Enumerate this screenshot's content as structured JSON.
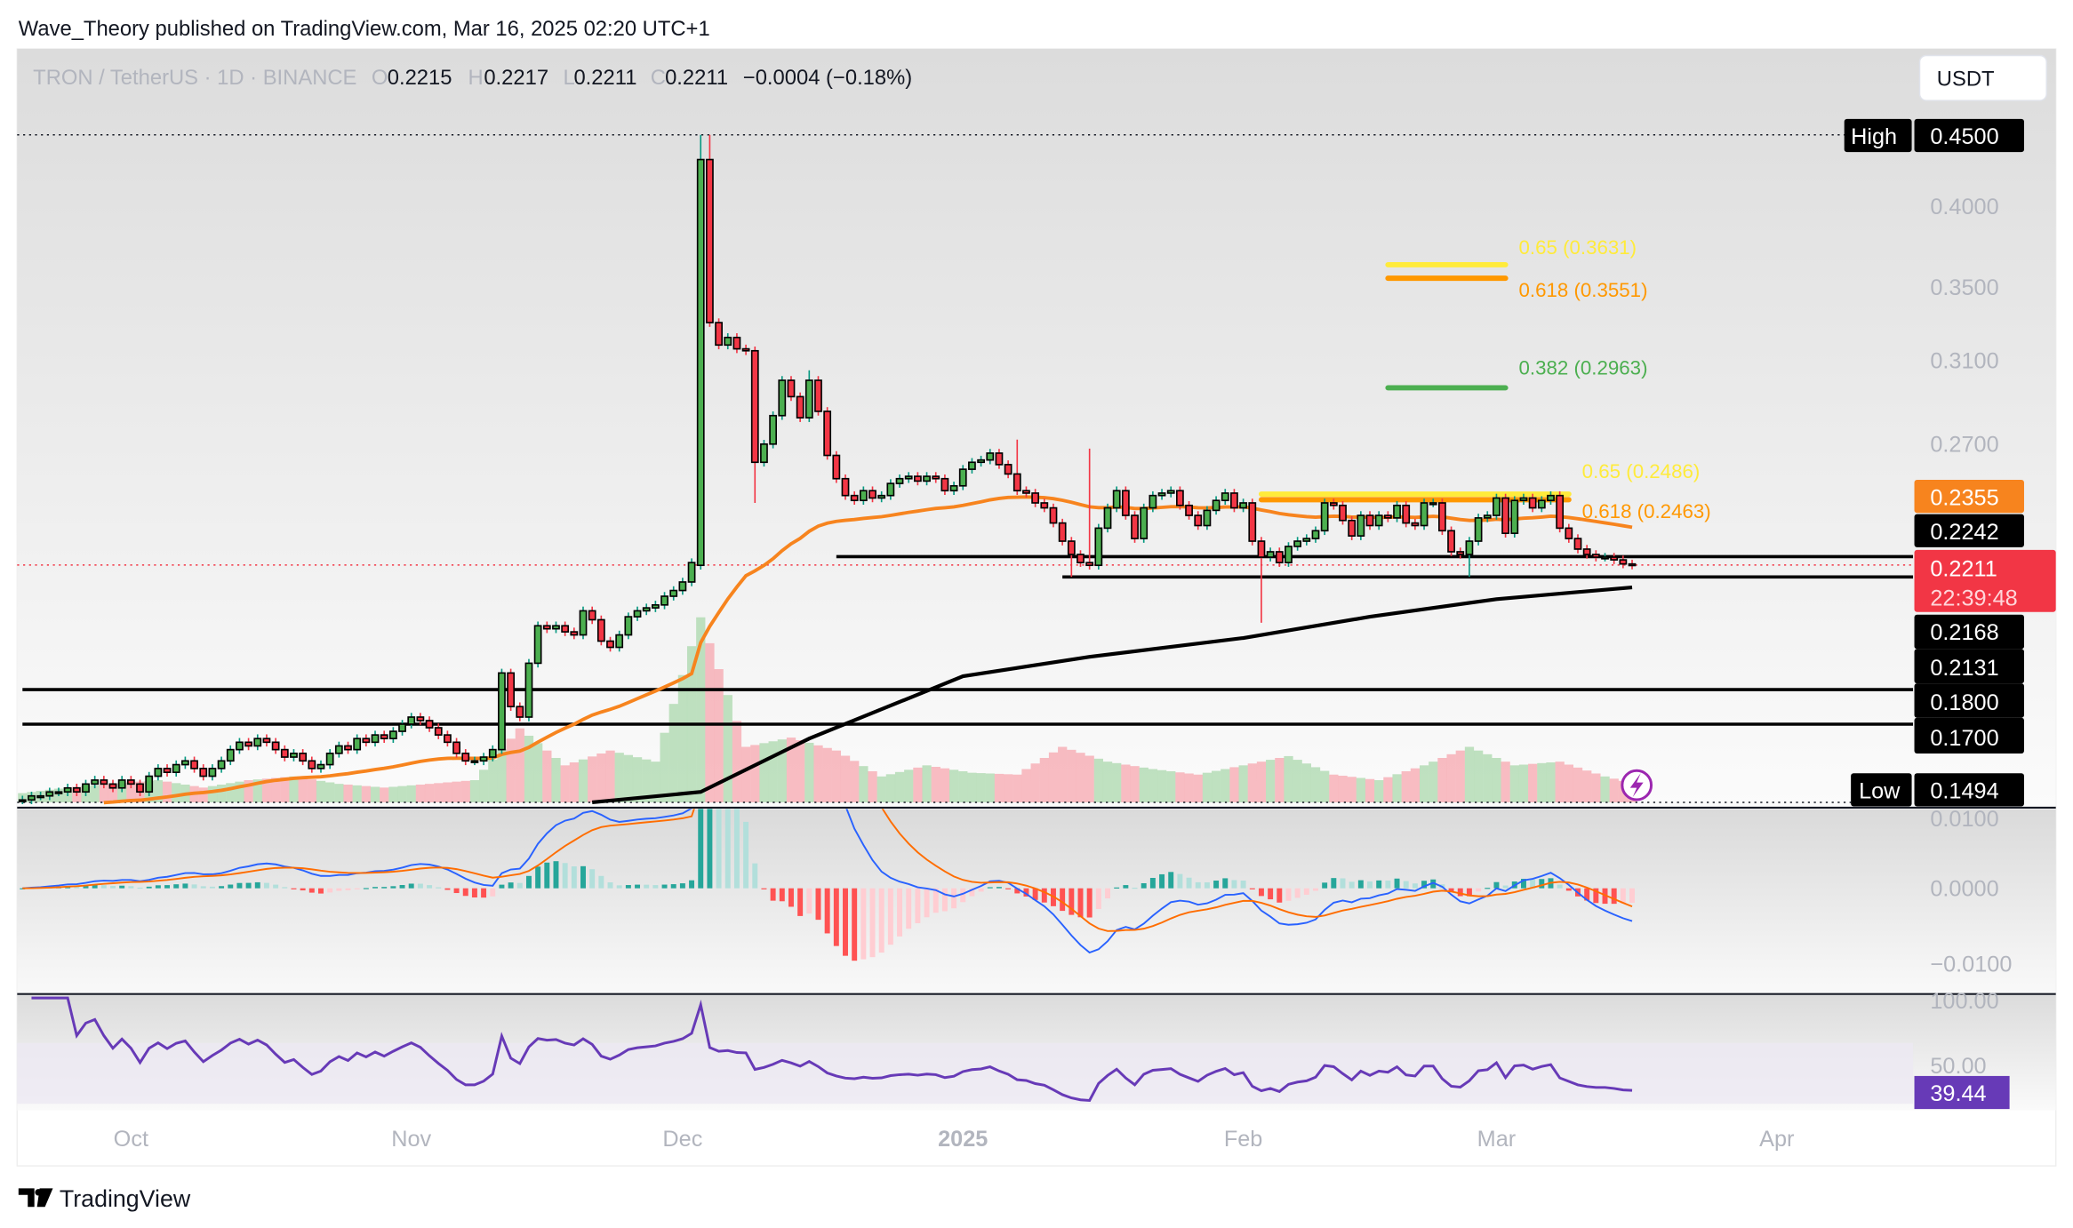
{
  "header": {
    "published": "Wave_Theory published on TradingView.com, Mar 16, 2025 02:20 UTC+1"
  },
  "legend": {
    "symbol": "TRON / TetherUS · 1D · BINANCE",
    "o_label": "O",
    "open": "0.2215",
    "h_label": "H",
    "high": "0.2217",
    "l_label": "L",
    "low": "0.2211",
    "c_label": "C",
    "close": "0.2211",
    "change": "−0.0004 (−0.18%)"
  },
  "currency_button": "USDT",
  "footer": {
    "logo_text": "TradingView"
  },
  "colors": {
    "up": "#4caf50",
    "down": "#f23645",
    "ema_fast": "#f7841e",
    "ema_slow": "#000000",
    "macd": "#2962ff",
    "signal": "#ff6d00",
    "rsi": "#673ab7",
    "last_price": "#f23645"
  },
  "chart_data": {
    "type": "candlestick",
    "scale": "log",
    "first_date": "2024-09-19",
    "closes": [
      0.15,
      0.151,
      0.151,
      0.152,
      0.152,
      0.153,
      0.152,
      0.154,
      0.155,
      0.154,
      0.153,
      0.155,
      0.154,
      0.152,
      0.156,
      0.158,
      0.157,
      0.159,
      0.16,
      0.158,
      0.156,
      0.158,
      0.16,
      0.163,
      0.165,
      0.164,
      0.166,
      0.165,
      0.163,
      0.161,
      0.162,
      0.16,
      0.158,
      0.159,
      0.162,
      0.164,
      0.163,
      0.166,
      0.165,
      0.167,
      0.166,
      0.168,
      0.17,
      0.172,
      0.171,
      0.169,
      0.167,
      0.165,
      0.162,
      0.16,
      0.16,
      0.161,
      0.163,
      0.185,
      0.175,
      0.172,
      0.188,
      0.2,
      0.199,
      0.2,
      0.198,
      0.197,
      0.205,
      0.202,
      0.195,
      0.193,
      0.197,
      0.203,
      0.205,
      0.206,
      0.207,
      0.21,
      0.212,
      0.215,
      0.222,
      0.432,
      0.33,
      0.318,
      0.322,
      0.316,
      0.315,
      0.262,
      0.27,
      0.283,
      0.3,
      0.292,
      0.282,
      0.3,
      0.285,
      0.265,
      0.255,
      0.248,
      0.246,
      0.25,
      0.247,
      0.248,
      0.253,
      0.255,
      0.256,
      0.254,
      0.256,
      0.255,
      0.25,
      0.252,
      0.259,
      0.262,
      0.263,
      0.266,
      0.261,
      0.257,
      0.25,
      0.249,
      0.245,
      0.243,
      0.237,
      0.23,
      0.225,
      0.222,
      0.221,
      0.235,
      0.243,
      0.25,
      0.24,
      0.231,
      0.243,
      0.248,
      0.249,
      0.25,
      0.244,
      0.24,
      0.236,
      0.242,
      0.246,
      0.249,
      0.243,
      0.245,
      0.23,
      0.224,
      0.226,
      0.222,
      0.228,
      0.23,
      0.231,
      0.234,
      0.245,
      0.244,
      0.238,
      0.232,
      0.24,
      0.236,
      0.24,
      0.239,
      0.244,
      0.237,
      0.236,
      0.245,
      0.245,
      0.234,
      0.226,
      0.225,
      0.23,
      0.239,
      0.24,
      0.247,
      0.233,
      0.246,
      0.247,
      0.243,
      0.246,
      0.248,
      0.235,
      0.231,
      0.227,
      0.225,
      0.224,
      0.224,
      0.223,
      0.2215,
      0.2211
    ],
    "open_overrides": {
      "75": 0.221,
      "178": 0.2215
    },
    "high_overrides": {
      "75": 0.45,
      "76": 0.45,
      "87": 0.305,
      "110": 0.272,
      "118": 0.268
    },
    "low_overrides": {
      "81": 0.245,
      "116": 0.2168,
      "137": 0.201,
      "160": 0.2168
    },
    "volume_keypoints": [
      5,
      8,
      10,
      12,
      8,
      12,
      14,
      10,
      8,
      10,
      12,
      40,
      20,
      28,
      22,
      100,
      30,
      35,
      28,
      14,
      20,
      16,
      15,
      30,
      22,
      18,
      15,
      20,
      25,
      15,
      12,
      20,
      30,
      20,
      22,
      14,
      8
    ],
    "ema_slow_keypoints": [
      [
        "2024-11-21",
        0.1494
      ],
      [
        "2024-12-03",
        0.152
      ],
      [
        "2024-12-15",
        0.166
      ],
      [
        "2025-01-01",
        0.184
      ],
      [
        "2025-01-15",
        0.19
      ],
      [
        "2025-02-01",
        0.196
      ],
      [
        "2025-02-15",
        0.203
      ],
      [
        "2025-03-01",
        0.209
      ],
      [
        "2025-03-16",
        0.2131
      ]
    ],
    "price_axis": {
      "ticks": [
        "0.4000",
        "0.3500",
        "0.3100",
        "0.2700"
      ]
    },
    "price_labels": {
      "high_label": "High",
      "high": "0.4500",
      "low_label": "Low",
      "low": "0.1494",
      "ema_fast": "0.2355",
      "resistance": "0.2242",
      "last_price": "0.2211",
      "countdown": "22:39:48",
      "support_1": "0.2168",
      "ema_slow": "0.2131",
      "support_2": "0.1800",
      "support_3": "0.1700"
    },
    "horizontal_lines": [
      {
        "value": 0.2242,
        "from": "2024-12-18"
      },
      {
        "value": 0.2168,
        "from": "2025-01-12"
      },
      {
        "value": 0.18,
        "from": "2024-09-19"
      },
      {
        "value": 0.17,
        "from": "2024-09-19"
      }
    ],
    "fib_levels": [
      {
        "text": "0.65 (0.3631)",
        "value": 0.3631,
        "color": "#ffeb3b",
        "from": "2025-02-17",
        "to": "2025-03-02"
      },
      {
        "text": "0.618 (0.3551)",
        "value": 0.3551,
        "color": "#ff9800",
        "from": "2025-02-17",
        "to": "2025-03-02"
      },
      {
        "text": "0.382 (0.2963)",
        "value": 0.2963,
        "color": "#4caf50",
        "from": "2025-02-17",
        "to": "2025-03-02"
      },
      {
        "text": "0.65 (0.2486)",
        "value": 0.2486,
        "color": "#ffeb3b",
        "from": "2025-02-03",
        "to": "2025-03-09"
      },
      {
        "text": "0.618 (0.2463)",
        "value": 0.2463,
        "color": "#ff9800",
        "from": "2025-02-03",
        "to": "2025-03-09"
      }
    ],
    "macd": {
      "ticks": [
        "0.0100",
        "0.0000",
        "−0.0100"
      ]
    },
    "rsi": {
      "ticks": [
        "100.00",
        "50.00"
      ],
      "value": "39.44",
      "band": [
        30,
        70
      ]
    },
    "time_axis": [
      {
        "label": "Oct",
        "date": "2024-10-01"
      },
      {
        "label": "Nov",
        "date": "2024-11-01"
      },
      {
        "label": "Dec",
        "date": "2024-12-01"
      },
      {
        "label": "2025",
        "date": "2025-01-01",
        "bold": true
      },
      {
        "label": "Feb",
        "date": "2025-02-01"
      },
      {
        "label": "Mar",
        "date": "2025-03-01"
      },
      {
        "label": "Apr",
        "date": "2025-04-01"
      }
    ]
  }
}
